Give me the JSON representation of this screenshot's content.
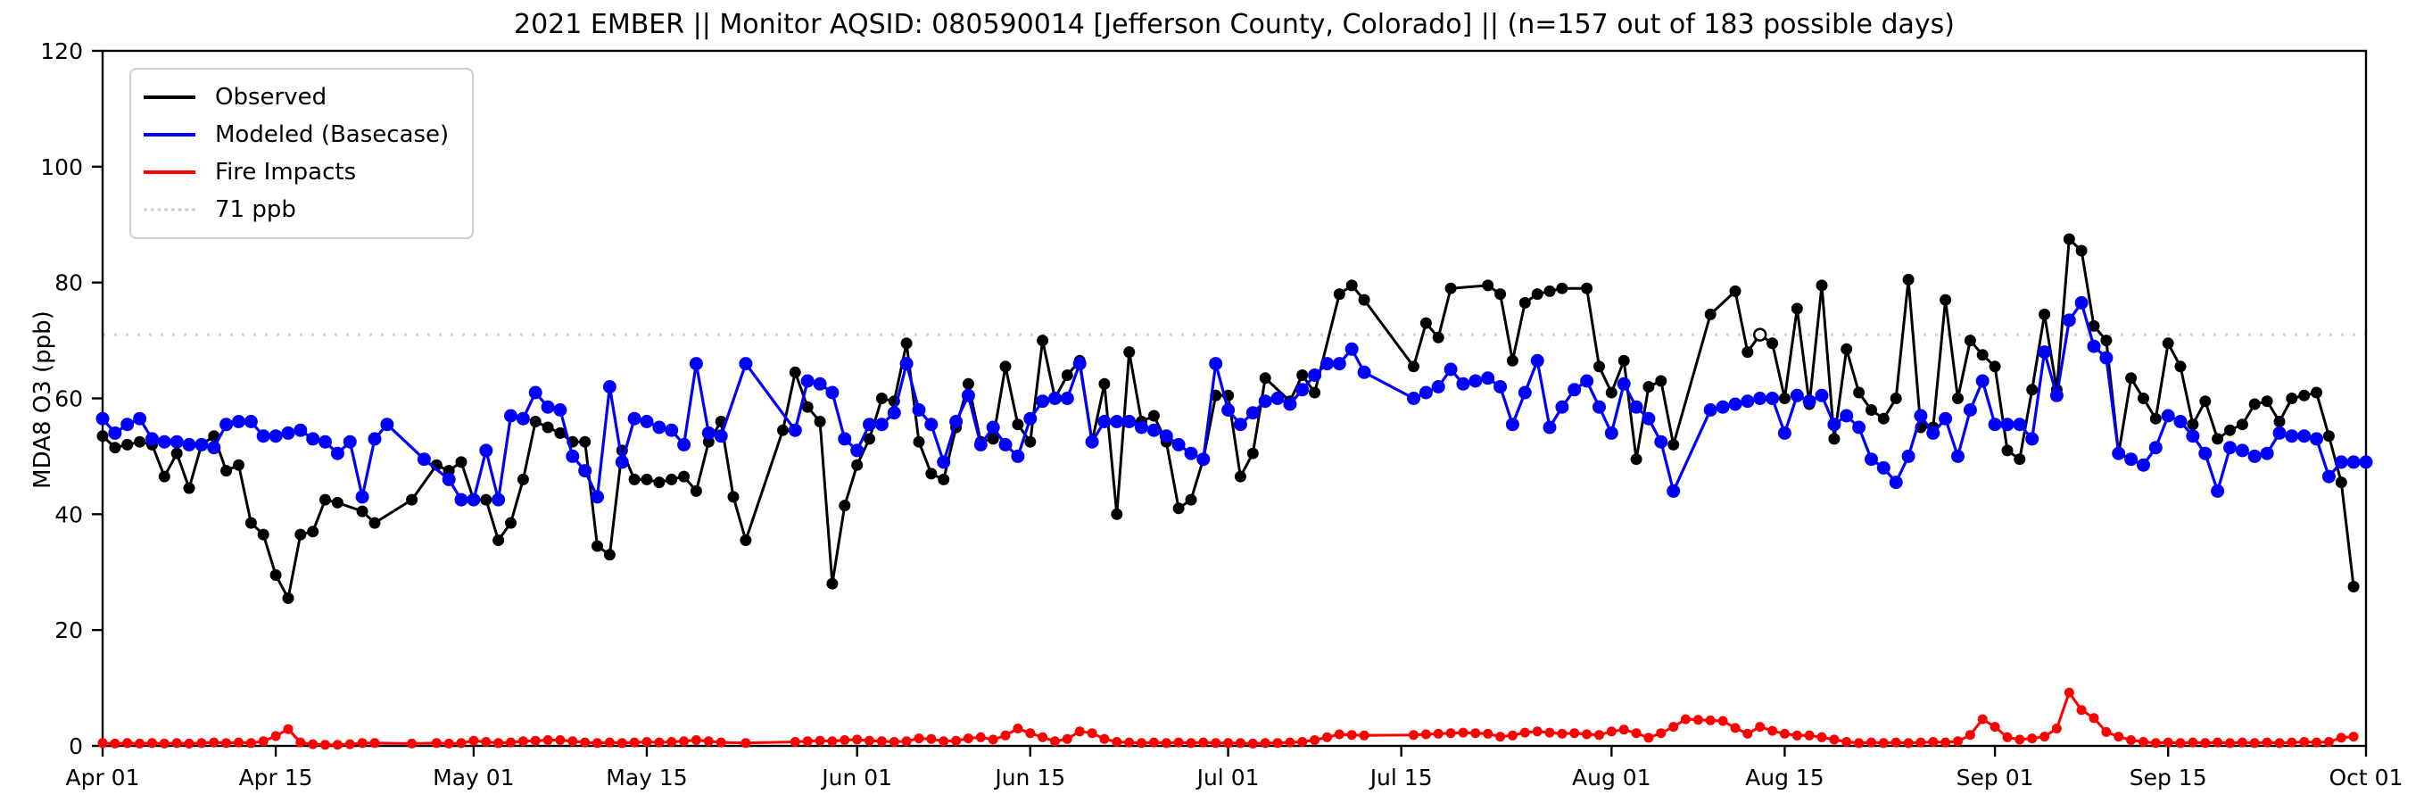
{
  "title": "2021 EMBER || Monitor AQSID: 080590014 [Jefferson County, Colorado] || (n=157 out of 183 possible days)",
  "chart_data": {
    "type": "line",
    "title": "2021 EMBER || Monitor AQSID: 080590014 [Jefferson County, Colorado] || (n=157 out of 183 possible days)",
    "xlabel": "",
    "ylabel": "MDA8 O3 (ppb)",
    "ylim": [
      0,
      120
    ],
    "yticks": [
      0,
      20,
      40,
      60,
      80,
      100,
      120
    ],
    "x_span_days": 183,
    "x_start": "Apr 01",
    "x_end": "Oct 01",
    "xtick_days": [
      0,
      14,
      30,
      44,
      61,
      75,
      91,
      105,
      122,
      136,
      153,
      167,
      183
    ],
    "xtick_labels": [
      "Apr 01",
      "Apr 15",
      "May 01",
      "May 15",
      "Jun 01",
      "Jun 15",
      "Jul 01",
      "Jul 15",
      "Aug 01",
      "Aug 15",
      "Sep 01",
      "Sep 15",
      "Oct 01"
    ],
    "grid": false,
    "reference_line": {
      "value": 71,
      "label": "71 ppb",
      "color": "#d3d3d3",
      "style": "dotted"
    },
    "legend": {
      "position": "upper-left",
      "entries": [
        {
          "label": "Observed",
          "color": "#000000",
          "line": "solid"
        },
        {
          "label": "Modeled (Basecase)",
          "color": "#0000ff",
          "line": "solid"
        },
        {
          "label": "Fire Impacts",
          "color": "#ff0000",
          "line": "solid"
        },
        {
          "label": "71 ppb",
          "color": "#d3d3d3",
          "line": "dotted"
        }
      ]
    },
    "annotations": [
      {
        "series": "Observed",
        "day_index": 134,
        "value": 71,
        "marker": "open-circle"
      }
    ],
    "series": [
      {
        "name": "Observed",
        "color": "#000000",
        "marker_radius": 6.5,
        "line_width": 3,
        "values": [
          53.5,
          51.5,
          52,
          52.5,
          52,
          46.5,
          50.5,
          44.5,
          52,
          53.5,
          47.5,
          48.5,
          38.5,
          36.5,
          29.5,
          25.5,
          36.5,
          37,
          42.5,
          42,
          null,
          40.5,
          38.5,
          null,
          null,
          42.5,
          null,
          48.5,
          47.5,
          49,
          42.5,
          42.5,
          35.5,
          38.5,
          46,
          56,
          55,
          54,
          52.5,
          52.5,
          34.5,
          33,
          51,
          46,
          46,
          45.5,
          46,
          46.5,
          44,
          52.5,
          56,
          43,
          35.5,
          null,
          null,
          54.5,
          64.5,
          58.5,
          56,
          28,
          41.5,
          48.5,
          53,
          60,
          59.5,
          69.5,
          52.5,
          47,
          46,
          55,
          62.5,
          52.5,
          53,
          65.5,
          55.5,
          52.5,
          70,
          60,
          64,
          66.5,
          52.5,
          62.5,
          40,
          68,
          56,
          57,
          52.5,
          41,
          42.5,
          49.5,
          60.5,
          60.5,
          46.5,
          50.5,
          63.5,
          null,
          59.5,
          64,
          61,
          null,
          78,
          79.5,
          77,
          null,
          null,
          null,
          65.5,
          73,
          70.5,
          79,
          null,
          null,
          79.5,
          78,
          66.5,
          76.5,
          78,
          78.5,
          79,
          null,
          79,
          65.5,
          61,
          66.5,
          49.5,
          62,
          63,
          52,
          null,
          null,
          74.5,
          null,
          78.5,
          68,
          71,
          69.5,
          60,
          75.5,
          59,
          79.5,
          53,
          68.5,
          61,
          58,
          56.5,
          60,
          80.5,
          55,
          55,
          77,
          60,
          70,
          67.5,
          65.5,
          51,
          49.5,
          61.5,
          74.5,
          61.5,
          87.5,
          85.5,
          72.5,
          70,
          50.5,
          63.5,
          60,
          56.5,
          69.5,
          65.5,
          55.5,
          59.5,
          53,
          54.5,
          55.5,
          59,
          59.5,
          56,
          60,
          60.5,
          61,
          53.5,
          45.5,
          27.5,
          null
        ]
      },
      {
        "name": "Modeled (Basecase)",
        "color": "#0000ff",
        "marker_radius": 7.5,
        "line_width": 3.2,
        "values": [
          56.5,
          54,
          55.5,
          56.5,
          53,
          52.5,
          52.5,
          52,
          52,
          51.5,
          55.5,
          56,
          56,
          53.5,
          53.5,
          54,
          54.5,
          53,
          52.5,
          50.5,
          52.5,
          43,
          53,
          55.5,
          null,
          null,
          49.5,
          null,
          46,
          42.5,
          42.5,
          51,
          42.5,
          57,
          56.5,
          61,
          58.5,
          58,
          50,
          47.5,
          43,
          62,
          49,
          56.5,
          56,
          55,
          54.5,
          52,
          66,
          54,
          53.5,
          null,
          66,
          null,
          null,
          null,
          54.5,
          63,
          62.5,
          61,
          53,
          51,
          55.5,
          55.5,
          57.5,
          66,
          58,
          55.5,
          49,
          56,
          60.5,
          52,
          55,
          52,
          50,
          56.5,
          59.5,
          60,
          60,
          66,
          52.5,
          56,
          56,
          56,
          55,
          54.5,
          53.5,
          52,
          50.5,
          49.5,
          66,
          58,
          55.5,
          57.5,
          59.5,
          60,
          59,
          61.5,
          64,
          66,
          66,
          68.5,
          64.5,
          null,
          null,
          null,
          60,
          61,
          62,
          65,
          62.5,
          63,
          63.5,
          62,
          55.5,
          61,
          66.5,
          55,
          58.5,
          61.5,
          63,
          58.5,
          54,
          62.5,
          58.5,
          56.5,
          52.5,
          44,
          null,
          null,
          58,
          58.5,
          59,
          59.5,
          60,
          60,
          54,
          60.5,
          59.5,
          60.5,
          55.5,
          57,
          55,
          49.5,
          48,
          45.5,
          50,
          57,
          54,
          56.5,
          50,
          58,
          63,
          55.5,
          55.5,
          55.5,
          53,
          68,
          60.5,
          73.5,
          76.5,
          69,
          67,
          50.5,
          49.5,
          48.5,
          51.5,
          57,
          56,
          53.5,
          50.5,
          44,
          51.5,
          51,
          50,
          50.5,
          54,
          53.5,
          53.5,
          53,
          46.5,
          49,
          49,
          49
        ]
      },
      {
        "name": "Fire Impacts",
        "color": "#ff0000",
        "marker_radius": 5.5,
        "line_width": 3,
        "values": [
          0.5,
          0.4,
          0.5,
          0.4,
          0.5,
          0.4,
          0.5,
          0.4,
          0.5,
          0.6,
          0.5,
          0.6,
          0.5,
          0.8,
          1.7,
          2.9,
          0.6,
          0.3,
          0.2,
          0.2,
          0.3,
          0.5,
          0.5,
          null,
          null,
          0.4,
          null,
          0.5,
          0.4,
          0.5,
          0.9,
          0.7,
          0.5,
          0.6,
          0.8,
          0.9,
          1,
          1,
          0.8,
          0.6,
          0.5,
          0.6,
          0.5,
          0.6,
          0.7,
          0.6,
          0.7,
          0.8,
          1,
          0.8,
          0.6,
          null,
          0.5,
          null,
          null,
          null,
          0.7,
          0.8,
          0.9,
          0.8,
          1,
          1.1,
          0.9,
          0.8,
          0.7,
          0.8,
          1.3,
          1.2,
          0.8,
          0.9,
          1.3,
          1.5,
          1.1,
          1.8,
          3,
          2.2,
          1.5,
          0.8,
          1.2,
          2.5,
          2.2,
          1.2,
          0.7,
          0.6,
          0.5,
          0.6,
          0.5,
          0.6,
          0.5,
          0.6,
          0.5,
          0.5,
          0.5,
          0.4,
          0.5,
          0.5,
          0.6,
          0.7,
          1,
          1.5,
          2,
          1.9,
          1.8,
          null,
          null,
          null,
          1.9,
          2,
          2.1,
          2.2,
          2.3,
          2.2,
          2.1,
          1.6,
          1.8,
          2.3,
          2.5,
          2.3,
          2.1,
          2.2,
          2,
          1.9,
          2.5,
          2.8,
          2.2,
          1.4,
          2.2,
          3.3,
          4.6,
          4.5,
          4.4,
          4.3,
          3.1,
          2.1,
          3.3,
          2.6,
          2.1,
          1.8,
          1.8,
          1.5,
          1.1,
          0.7,
          0.5,
          0.6,
          0.5,
          0.6,
          0.5,
          0.6,
          0.7,
          0.6,
          0.8,
          1.9,
          4.6,
          3.3,
          1.5,
          1.1,
          1.3,
          1.6,
          3,
          9.2,
          6.2,
          4.8,
          2.4,
          1.6,
          1,
          0.7,
          0.5,
          0.6,
          0.5,
          0.6,
          0.5,
          0.6,
          0.5,
          0.6,
          0.5,
          0.6,
          0.5,
          0.6,
          0.7,
          0.6,
          0.7,
          1.4,
          1.6,
          null
        ]
      }
    ]
  }
}
